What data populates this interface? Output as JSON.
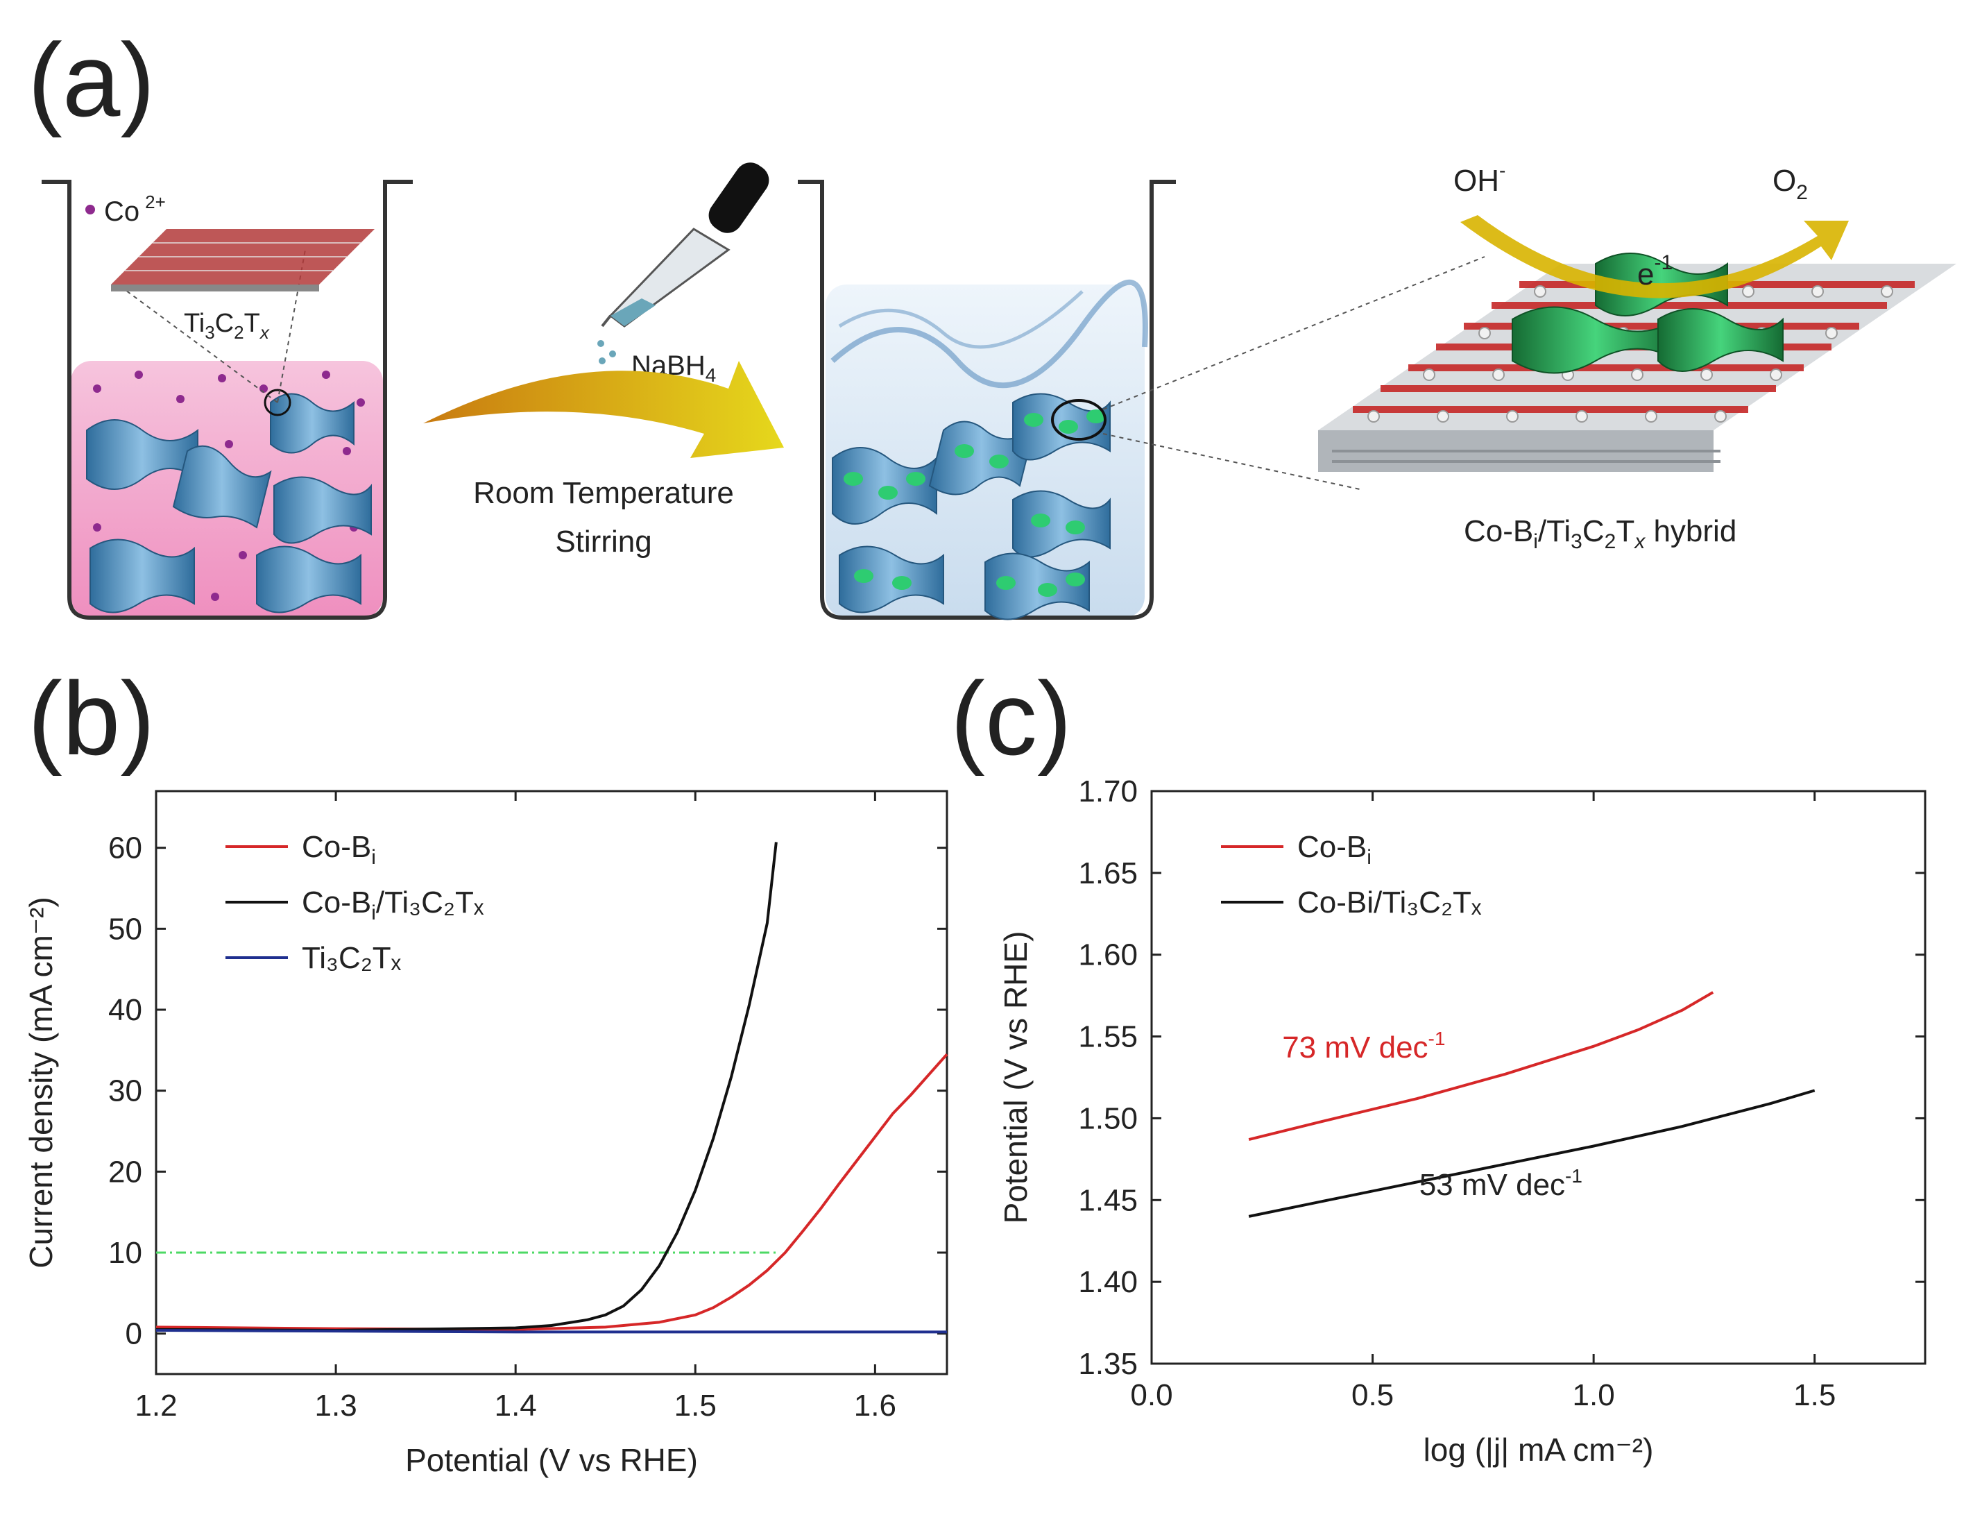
{
  "panels": {
    "a": "(a)",
    "b": "(b)",
    "c": "(c)"
  },
  "schematic": {
    "co_ion_label": "Co",
    "co_ion_charge": "2+",
    "mxene_label": {
      "base": "Ti",
      "s1": "3",
      "m": "C",
      "s2": "2",
      "t": "T",
      "s3": "x"
    },
    "reagent": {
      "base": "NaBH",
      "sub": "4"
    },
    "condition_line1": "Room Temperature",
    "condition_line2": "Stirring",
    "oh_label": "OH",
    "oh_charge": "-",
    "o2_label": "O",
    "o2_sub": "2",
    "electron_label": "e",
    "electron_sup": "-1",
    "hybrid_label": {
      "p1": "Co-B",
      "s1": "i",
      "p2": "/Ti",
      "s2": "3",
      "p3": "C",
      "s3": "2",
      "p4": "T",
      "s4": "x",
      "p5": " hybrid"
    },
    "colors": {
      "solution": "#f3a9cf",
      "mxene": "#3d7fb0",
      "cobi": "#2ecc71",
      "arrow": "#d8b400",
      "oxygen": "#d63031",
      "lattice": "#9aa1a8"
    }
  },
  "chart_data": [
    {
      "type": "line",
      "panel": "b",
      "xlabel": "Potential (V vs RHE)",
      "ylabel": "Current density (mA cm⁻²)",
      "xlim": [
        1.2,
        1.64
      ],
      "ylim": [
        -5,
        67
      ],
      "xticks": [
        1.2,
        1.3,
        1.4,
        1.5,
        1.6
      ],
      "xtick_labels": [
        "1.2",
        "1.3",
        "1.4",
        "1.5",
        "1.6"
      ],
      "yticks": [
        0,
        10,
        20,
        30,
        40,
        50,
        60
      ],
      "ytick_labels": [
        "0",
        "10",
        "20",
        "30",
        "40",
        "50",
        "60"
      ],
      "reference_line": {
        "y": 10,
        "x_range": [
          1.2,
          1.545
        ],
        "color": "#4cd964",
        "style": "dash-dot"
      },
      "legend": {
        "position": "top-left",
        "entries": [
          {
            "base": "Co-B",
            "sub": "i",
            "rest": ""
          },
          {
            "base": "Co-B",
            "sub": "i",
            "rest": "/Ti₃C₂Tₓ"
          },
          {
            "base": "Ti₃C₂Tₓ",
            "sub": "",
            "rest": ""
          }
        ]
      },
      "series": [
        {
          "name": "Co-B_i",
          "color": "#d62728",
          "x": [
            1.2,
            1.3,
            1.4,
            1.45,
            1.48,
            1.5,
            1.51,
            1.52,
            1.53,
            1.54,
            1.55,
            1.56,
            1.57,
            1.58,
            1.59,
            1.6,
            1.61,
            1.62,
            1.63,
            1.64
          ],
          "y": [
            0.8,
            0.6,
            0.5,
            0.8,
            1.4,
            2.3,
            3.2,
            4.5,
            6.0,
            7.8,
            10.0,
            12.7,
            15.5,
            18.5,
            21.4,
            24.3,
            27.2,
            29.5,
            32.0,
            34.5
          ]
        },
        {
          "name": "Co-B_i/Ti3C2Tx",
          "color": "#111111",
          "x": [
            1.2,
            1.3,
            1.4,
            1.42,
            1.44,
            1.45,
            1.46,
            1.47,
            1.48,
            1.49,
            1.5,
            1.51,
            1.52,
            1.53,
            1.54,
            1.545
          ],
          "y": [
            0.5,
            0.4,
            0.7,
            1.0,
            1.7,
            2.3,
            3.4,
            5.4,
            8.4,
            12.5,
            17.7,
            24.1,
            31.7,
            40.6,
            50.7,
            60.7
          ]
        },
        {
          "name": "Ti3C2Tx",
          "color": "#1f2f8f",
          "x": [
            1.2,
            1.3,
            1.4,
            1.5,
            1.6,
            1.64
          ],
          "y": [
            0.4,
            0.3,
            0.2,
            0.2,
            0.2,
            0.2
          ]
        }
      ]
    },
    {
      "type": "line",
      "panel": "c",
      "xlabel": "log (|j| mA cm⁻²)",
      "ylabel": "Potential (V vs RHE)",
      "xlim": [
        0.0,
        1.75
      ],
      "ylim": [
        1.35,
        1.7
      ],
      "xticks": [
        0.0,
        0.5,
        1.0,
        1.5
      ],
      "xtick_labels": [
        "0.0",
        "0.5",
        "1.0",
        "1.5"
      ],
      "yticks": [
        1.35,
        1.4,
        1.45,
        1.5,
        1.55,
        1.6,
        1.65,
        1.7
      ],
      "ytick_labels": [
        "1.35",
        "1.40",
        "1.45",
        "1.50",
        "1.55",
        "1.60",
        "1.65",
        "1.70"
      ],
      "legend": {
        "position": "top-left",
        "entries": [
          {
            "base": "Co-B",
            "sub": "i",
            "rest": ""
          },
          {
            "base": "Co-Bi/Ti₃C₂Tₓ",
            "sub": "",
            "rest": ""
          }
        ]
      },
      "annotations": [
        {
          "text": "73 mV dec",
          "sup": "-1",
          "x": 0.48,
          "y": 1.537,
          "color": "#d62728"
        },
        {
          "text": "53 mV dec",
          "sup": "-1",
          "x": 0.79,
          "y": 1.453,
          "color": "#222222"
        }
      ],
      "series": [
        {
          "name": "Co-B_i",
          "color": "#d62728",
          "x": [
            0.22,
            0.4,
            0.6,
            0.8,
            1.0,
            1.1,
            1.2,
            1.27
          ],
          "y": [
            1.487,
            1.499,
            1.512,
            1.527,
            1.544,
            1.554,
            1.566,
            1.577
          ]
        },
        {
          "name": "Co-Bi/Ti3C2Tx",
          "color": "#111111",
          "x": [
            0.22,
            0.4,
            0.6,
            0.8,
            1.0,
            1.2,
            1.4,
            1.5
          ],
          "y": [
            1.44,
            1.45,
            1.461,
            1.472,
            1.483,
            1.495,
            1.509,
            1.517
          ]
        }
      ]
    }
  ]
}
